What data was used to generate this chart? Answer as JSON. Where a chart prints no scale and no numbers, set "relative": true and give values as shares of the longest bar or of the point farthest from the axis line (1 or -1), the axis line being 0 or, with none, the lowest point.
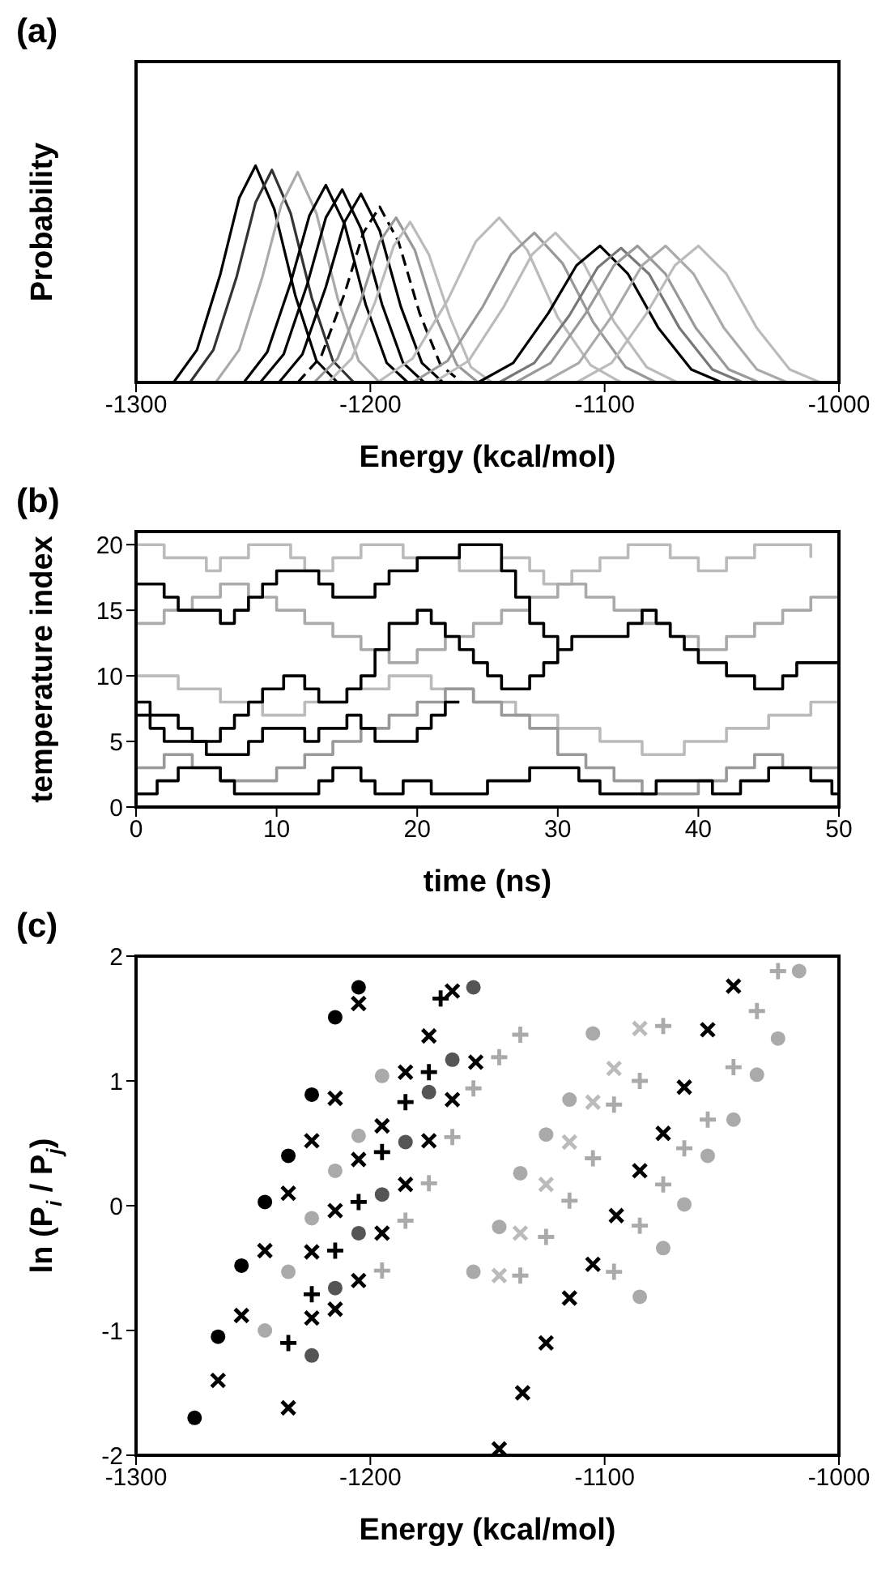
{
  "chart_data": [
    {
      "type": "line",
      "title": "(a)",
      "xlabel": "Energy (kcal/mol)",
      "ylabel": "Probability",
      "relative": true,
      "xlim": [
        -1300,
        -1000
      ],
      "xticks": [
        -1300,
        -1200,
        -1100,
        -1000
      ],
      "series": [
        {
          "color": "#000000",
          "x": [
            -1284,
            -1274,
            -1264,
            -1256,
            -1249,
            -1241,
            -1232,
            -1223,
            -1214
          ],
          "values": [
            0,
            0.15,
            0.5,
            0.85,
            1,
            0.8,
            0.4,
            0.1,
            0
          ]
        },
        {
          "color": "#333333",
          "x": [
            -1277,
            -1267,
            -1257,
            -1249,
            -1242,
            -1234,
            -1225,
            -1216,
            -1207
          ],
          "values": [
            0,
            0.15,
            0.49,
            0.83,
            0.98,
            0.78,
            0.39,
            0.1,
            0
          ]
        },
        {
          "color": "#aaaaaa",
          "x": [
            -1266,
            -1256,
            -1246,
            -1238,
            -1231,
            -1223,
            -1214,
            -1205,
            -1196
          ],
          "values": [
            0,
            0.15,
            0.49,
            0.82,
            0.97,
            0.78,
            0.39,
            0.1,
            0
          ]
        },
        {
          "color": "#000000",
          "x": [
            -1254,
            -1244,
            -1234,
            -1226,
            -1219,
            -1211,
            -1202,
            -1193,
            -1184
          ],
          "values": [
            0,
            0.14,
            0.46,
            0.77,
            0.91,
            0.73,
            0.36,
            0.09,
            0
          ]
        },
        {
          "color": "#000000",
          "x": [
            -1247,
            -1237,
            -1227,
            -1219,
            -1212,
            -1204,
            -1195,
            -1186,
            -1177
          ],
          "values": [
            0,
            0.13,
            0.45,
            0.76,
            0.89,
            0.71,
            0.36,
            0.09,
            0
          ]
        },
        {
          "color": "#000000",
          "x": [
            -1239,
            -1229,
            -1219,
            -1211,
            -1204,
            -1196,
            -1187,
            -1178,
            -1169
          ],
          "values": [
            0,
            0.13,
            0.44,
            0.74,
            0.87,
            0.7,
            0.35,
            0.09,
            0
          ]
        },
        {
          "color": "#000000",
          "line_style": "dashed",
          "x": [
            -1231,
            -1221,
            -1211,
            -1203,
            -1196,
            -1188,
            -1179,
            -1170,
            -1161
          ],
          "values": [
            0,
            0.12,
            0.41,
            0.69,
            0.81,
            0.65,
            0.32,
            0.08,
            0
          ]
        },
        {
          "color": "#999999",
          "x": [
            -1224,
            -1214,
            -1204,
            -1196,
            -1189,
            -1181,
            -1172,
            -1163,
            -1154
          ],
          "values": [
            0,
            0.11,
            0.38,
            0.65,
            0.76,
            0.61,
            0.3,
            0.08,
            0
          ]
        },
        {
          "color": "#bbbbbb",
          "x": [
            -1218,
            -1208,
            -1198,
            -1190,
            -1183,
            -1175,
            -1166,
            -1157,
            -1148
          ],
          "values": [
            0,
            0.11,
            0.37,
            0.63,
            0.74,
            0.59,
            0.3,
            0.07,
            0
          ]
        },
        {
          "color": "#bbbbbb",
          "x": [
            -1197,
            -1182,
            -1167,
            -1155,
            -1145,
            -1133,
            -1120,
            -1106,
            -1093
          ],
          "values": [
            0,
            0.11,
            0.38,
            0.65,
            0.76,
            0.61,
            0.3,
            0.08,
            0
          ]
        },
        {
          "color": "#999999",
          "x": [
            -1182,
            -1167,
            -1152,
            -1140,
            -1130,
            -1118,
            -1105,
            -1091,
            -1078
          ],
          "values": [
            0,
            0.1,
            0.35,
            0.59,
            0.69,
            0.55,
            0.28,
            0.07,
            0
          ]
        },
        {
          "color": "#bbbbbb",
          "x": [
            -1173,
            -1158,
            -1143,
            -1131,
            -1121,
            -1109,
            -1096,
            -1082,
            -1069
          ],
          "values": [
            0,
            0.1,
            0.35,
            0.59,
            0.69,
            0.55,
            0.28,
            0.07,
            0
          ]
        },
        {
          "color": "#000000",
          "x": [
            -1154,
            -1139,
            -1124,
            -1112,
            -1102,
            -1090,
            -1077,
            -1063,
            -1050
          ],
          "values": [
            0,
            0.09,
            0.32,
            0.54,
            0.63,
            0.5,
            0.25,
            0.06,
            0
          ]
        },
        {
          "color": "#777777",
          "x": [
            -1145,
            -1130,
            -1115,
            -1103,
            -1093,
            -1081,
            -1068,
            -1054,
            -1041
          ],
          "values": [
            0,
            0.09,
            0.31,
            0.53,
            0.62,
            0.5,
            0.25,
            0.06,
            0
          ]
        },
        {
          "color": "#999999",
          "x": [
            -1138,
            -1123,
            -1108,
            -1096,
            -1086,
            -1074,
            -1061,
            -1047,
            -1034
          ],
          "values": [
            0,
            0.09,
            0.32,
            0.54,
            0.63,
            0.5,
            0.25,
            0.06,
            0
          ]
        },
        {
          "color": "#aaaaaa",
          "x": [
            -1126,
            -1111,
            -1096,
            -1084,
            -1074,
            -1062,
            -1049,
            -1035,
            -1022
          ],
          "values": [
            0,
            0.09,
            0.32,
            0.54,
            0.63,
            0.5,
            0.25,
            0.06,
            0
          ]
        },
        {
          "color": "#bbbbbb",
          "x": [
            -1112,
            -1097,
            -1082,
            -1070,
            -1060,
            -1048,
            -1035,
            -1021,
            -1008
          ],
          "values": [
            0,
            0.09,
            0.32,
            0.54,
            0.63,
            0.5,
            0.25,
            0.06,
            0
          ]
        }
      ]
    },
    {
      "type": "step",
      "title": "(b)",
      "xlabel": "time (ns)",
      "ylabel": "temperature index",
      "xlim": [
        0,
        50
      ],
      "xticks": [
        0,
        10,
        20,
        30,
        40,
        50
      ],
      "ylim": [
        0,
        21
      ],
      "yticks": [
        0,
        5,
        10,
        15,
        20
      ],
      "series": [
        {
          "color": "#bbbbbb",
          "x": [
            0,
            2,
            3,
            5,
            6,
            8,
            9,
            11,
            12,
            14,
            16,
            18,
            19,
            21,
            23,
            24,
            26,
            28,
            29,
            31,
            33,
            35,
            36,
            38,
            40,
            42,
            44,
            46,
            48
          ],
          "values": [
            20,
            19,
            19,
            18,
            19,
            20,
            20,
            19,
            18,
            19,
            20,
            20,
            19,
            19,
            18,
            18,
            19,
            18,
            17,
            18,
            19,
            20,
            20,
            19,
            18,
            19,
            20,
            20,
            19
          ]
        },
        {
          "color": "#aaaaaa",
          "x": [
            0,
            2,
            4,
            6,
            8,
            10,
            12,
            14,
            16,
            18,
            20,
            22,
            24,
            26,
            28,
            30,
            32,
            34,
            36,
            38,
            40,
            42,
            44,
            46,
            48,
            50
          ],
          "values": [
            14,
            15,
            16,
            17,
            16,
            15,
            14,
            13,
            12,
            11,
            12,
            13,
            14,
            15,
            16,
            17,
            16,
            15,
            14,
            13,
            12,
            13,
            14,
            15,
            16,
            16
          ]
        },
        {
          "color": "#bbbbbb",
          "x": [
            0,
            3,
            6,
            9,
            12,
            15,
            18,
            21,
            24,
            27,
            30,
            33,
            36,
            39,
            42,
            45,
            48,
            50
          ],
          "values": [
            10,
            9,
            8,
            7,
            8,
            9,
            10,
            9,
            8,
            7,
            6,
            5,
            4,
            5,
            6,
            7,
            8,
            8
          ]
        },
        {
          "color": "#999999",
          "x": [
            0,
            2,
            4,
            6,
            8,
            10,
            12,
            14,
            16,
            18,
            20,
            22,
            24,
            26,
            28,
            30,
            32,
            34,
            36,
            38,
            40,
            42,
            44,
            46,
            48,
            50
          ],
          "values": [
            3,
            4,
            3,
            2,
            2,
            3,
            4,
            5,
            6,
            7,
            8,
            9,
            8,
            7,
            6,
            4,
            3,
            2,
            1,
            1,
            2,
            3,
            4,
            3,
            3,
            3
          ]
        },
        {
          "color": "#000000",
          "x": [
            0,
            1.5,
            3,
            4.5,
            6,
            7,
            13,
            14,
            16,
            17,
            19,
            21,
            25,
            28,
            30,
            31.5,
            33,
            35,
            37,
            39,
            41,
            43,
            45,
            46.5,
            48,
            49.5,
            50
          ],
          "values": [
            1,
            2,
            3,
            3,
            2,
            1,
            2,
            3,
            2,
            1,
            2,
            1,
            2,
            3,
            3,
            2,
            1,
            1,
            2,
            2,
            1,
            2,
            3,
            3,
            2,
            1,
            1
          ]
        },
        {
          "color": "#000000",
          "x": [
            0,
            1,
            3,
            4,
            6,
            7,
            8,
            9,
            10.5,
            12,
            13,
            14,
            15,
            16,
            17,
            18,
            20,
            21,
            22,
            23,
            24,
            25,
            26,
            27,
            28,
            29,
            30,
            31,
            33,
            35,
            36,
            37,
            38,
            39,
            40,
            41,
            42,
            44,
            45,
            46,
            47,
            48,
            50
          ],
          "values": [
            8,
            7,
            6,
            5,
            6,
            7,
            8,
            9,
            10,
            9,
            8,
            8,
            9,
            10,
            12,
            14,
            15,
            14,
            13,
            12,
            11,
            10,
            9,
            9,
            10,
            11,
            12,
            13,
            13,
            14,
            15,
            14,
            13,
            12,
            11,
            11,
            10,
            9,
            9,
            10,
            11,
            11,
            11
          ]
        },
        {
          "color": "#000000",
          "x": [
            0,
            2,
            3,
            4,
            6,
            7,
            8,
            9,
            10,
            12,
            13,
            14,
            15,
            17,
            18,
            20,
            21,
            22,
            23,
            25,
            26,
            27,
            28,
            29,
            30
          ],
          "values": [
            17,
            16,
            15,
            15,
            14,
            15,
            16,
            17,
            18,
            18,
            17,
            16,
            16,
            17,
            18,
            19,
            19,
            19,
            20,
            20,
            18,
            16,
            14,
            13,
            12
          ]
        },
        {
          "color": "#000000",
          "x": [
            0,
            1,
            2,
            4,
            5,
            7,
            8,
            9,
            11,
            12,
            13,
            15,
            16,
            17,
            19,
            20,
            21,
            22,
            23
          ],
          "values": [
            7,
            6,
            5,
            5,
            4,
            4,
            5,
            6,
            6,
            5,
            6,
            7,
            6,
            5,
            5,
            6,
            7,
            8,
            8
          ]
        }
      ]
    },
    {
      "type": "scatter",
      "title": "(c)",
      "xlabel": "Energy (kcal/mol)",
      "ylabel": "ln (P$_{i}$ / P$_{j}$)",
      "xlim": [
        -1300,
        -1000
      ],
      "xticks": [
        -1300,
        -1200,
        -1100,
        -1000
      ],
      "ylim": [
        -2,
        2
      ],
      "yticks": [
        -2,
        -1,
        0,
        1,
        2
      ],
      "series": [
        {
          "color": "#000000",
          "marker": "circle",
          "x": [
            -1275,
            -1265,
            -1255,
            -1245,
            -1235,
            -1225,
            -1215,
            -1205
          ],
          "values": [
            -1.7,
            -1.05,
            -0.48,
            0.03,
            0.4,
            0.89,
            1.51,
            1.75
          ]
        },
        {
          "color": "#000000",
          "marker": "cross",
          "x": [
            -1265,
            -1255,
            -1245,
            -1235,
            -1225,
            -1215,
            -1205,
            -1235,
            -1225,
            -1225,
            -1215,
            -1205,
            -1195,
            -1185,
            -1175,
            -1215,
            -1205,
            -1195,
            -1185,
            -1175,
            -1165,
            -1155,
            -1165,
            -1115,
            -1105,
            -1095,
            -1085,
            -1075,
            -1066,
            -1056,
            -1045,
            -1125,
            -1135,
            -1145
          ],
          "values": [
            -1.4,
            -0.88,
            -0.36,
            0.1,
            0.52,
            0.86,
            1.62,
            -1.62,
            -0.9,
            -0.37,
            -0.04,
            0.37,
            0.64,
            1.07,
            1.36,
            -0.83,
            -0.6,
            -0.22,
            0.17,
            0.52,
            0.85,
            1.15,
            1.72,
            -0.74,
            -0.47,
            -0.08,
            0.28,
            0.58,
            0.95,
            1.41,
            1.76,
            -1.1,
            -1.5,
            -1.95
          ]
        },
        {
          "color": "#000000",
          "marker": "plus",
          "x": [
            -1235,
            -1225,
            -1215,
            -1205,
            -1195,
            -1185,
            -1175,
            -1170
          ],
          "values": [
            -1.1,
            -0.71,
            -0.36,
            0.03,
            0.43,
            0.83,
            1.07,
            1.66
          ]
        },
        {
          "color": "#555555",
          "marker": "circle",
          "x": [
            -1225,
            -1215,
            -1205,
            -1195,
            -1185,
            -1175,
            -1165,
            -1156
          ],
          "values": [
            -1.2,
            -0.66,
            -0.22,
            0.09,
            0.51,
            0.91,
            1.17,
            1.75
          ]
        },
        {
          "color": "#aaaaaa",
          "marker": "circle",
          "x": [
            -1245,
            -1235,
            -1225,
            -1215,
            -1205,
            -1195,
            -1156,
            -1145,
            -1136,
            -1125,
            -1115,
            -1105,
            -1085,
            -1075,
            -1066,
            -1056,
            -1045,
            -1035,
            -1026,
            -1017
          ],
          "values": [
            -1.0,
            -0.53,
            -0.1,
            0.28,
            0.56,
            1.04,
            -0.53,
            -0.17,
            0.26,
            0.57,
            0.85,
            1.38,
            -0.73,
            -0.34,
            0.01,
            0.4,
            0.69,
            1.05,
            1.34,
            1.88
          ]
        },
        {
          "color": "#aaaaaa",
          "marker": "plus",
          "x": [
            -1195,
            -1185,
            -1175,
            -1165,
            -1156,
            -1145,
            -1136,
            -1136,
            -1125,
            -1115,
            -1105,
            -1096,
            -1085,
            -1075,
            -1096,
            -1085,
            -1075,
            -1066,
            -1056,
            -1045,
            -1035,
            -1026
          ],
          "values": [
            -0.52,
            -0.12,
            0.18,
            0.55,
            0.94,
            1.19,
            1.37,
            -0.56,
            -0.25,
            0.04,
            0.38,
            0.81,
            1.0,
            1.44,
            -0.53,
            -0.16,
            0.17,
            0.46,
            0.69,
            1.11,
            1.56,
            1.88
          ]
        },
        {
          "color": "#bbbbbb",
          "marker": "cross",
          "x": [
            -1145,
            -1136,
            -1125,
            -1115,
            -1105,
            -1096,
            -1085
          ],
          "values": [
            -0.56,
            -0.22,
            0.17,
            0.51,
            0.83,
            1.1,
            1.42
          ]
        }
      ]
    }
  ]
}
